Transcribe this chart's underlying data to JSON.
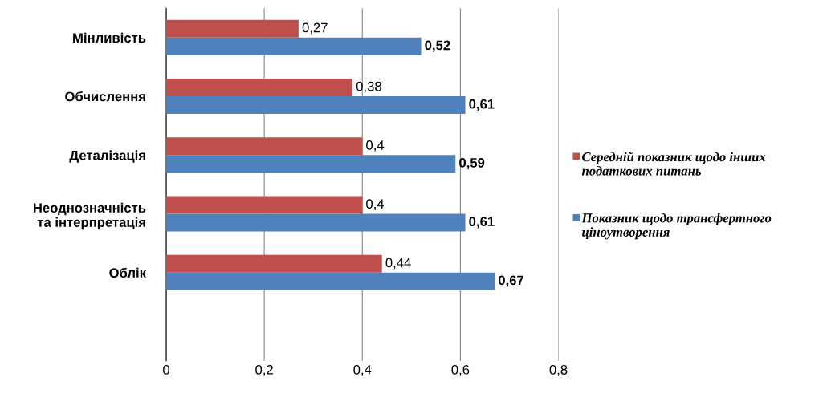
{
  "chart_data": {
    "type": "bar",
    "orientation": "horizontal",
    "categories": [
      "Мінливість",
      "Обчислення",
      "Деталізація",
      "Неоднозначність\nта інтерпретація",
      "Облік",
      null
    ],
    "series": [
      {
        "name": "Середній показник щодо інших податкових питань",
        "color": "#c0504d",
        "values": [
          0.27,
          0.38,
          0.4,
          0.4,
          0.44,
          null
        ],
        "value_labels": [
          "0,27",
          "0,38",
          "0,4",
          "0,4",
          "0,44",
          null
        ]
      },
      {
        "name": "Показник щодо трансфертного ціноутворення",
        "color": "#4f81bd",
        "values": [
          0.52,
          0.61,
          0.59,
          0.61,
          0.67,
          null
        ],
        "value_labels": [
          "0,52",
          "0,61",
          "0,59",
          "0,61",
          "0,67",
          null
        ]
      }
    ],
    "xlim": [
      0,
      0.8
    ],
    "xticks": [
      0,
      {
        "value": 0.2,
        "label": "0,2"
      },
      {
        "value": 0.4,
        "label": "0,4"
      },
      {
        "value": 0.6,
        "label": "0,6"
      },
      {
        "value": 0.8,
        "label": "0,8"
      }
    ],
    "grid": "x",
    "legend": "right"
  }
}
